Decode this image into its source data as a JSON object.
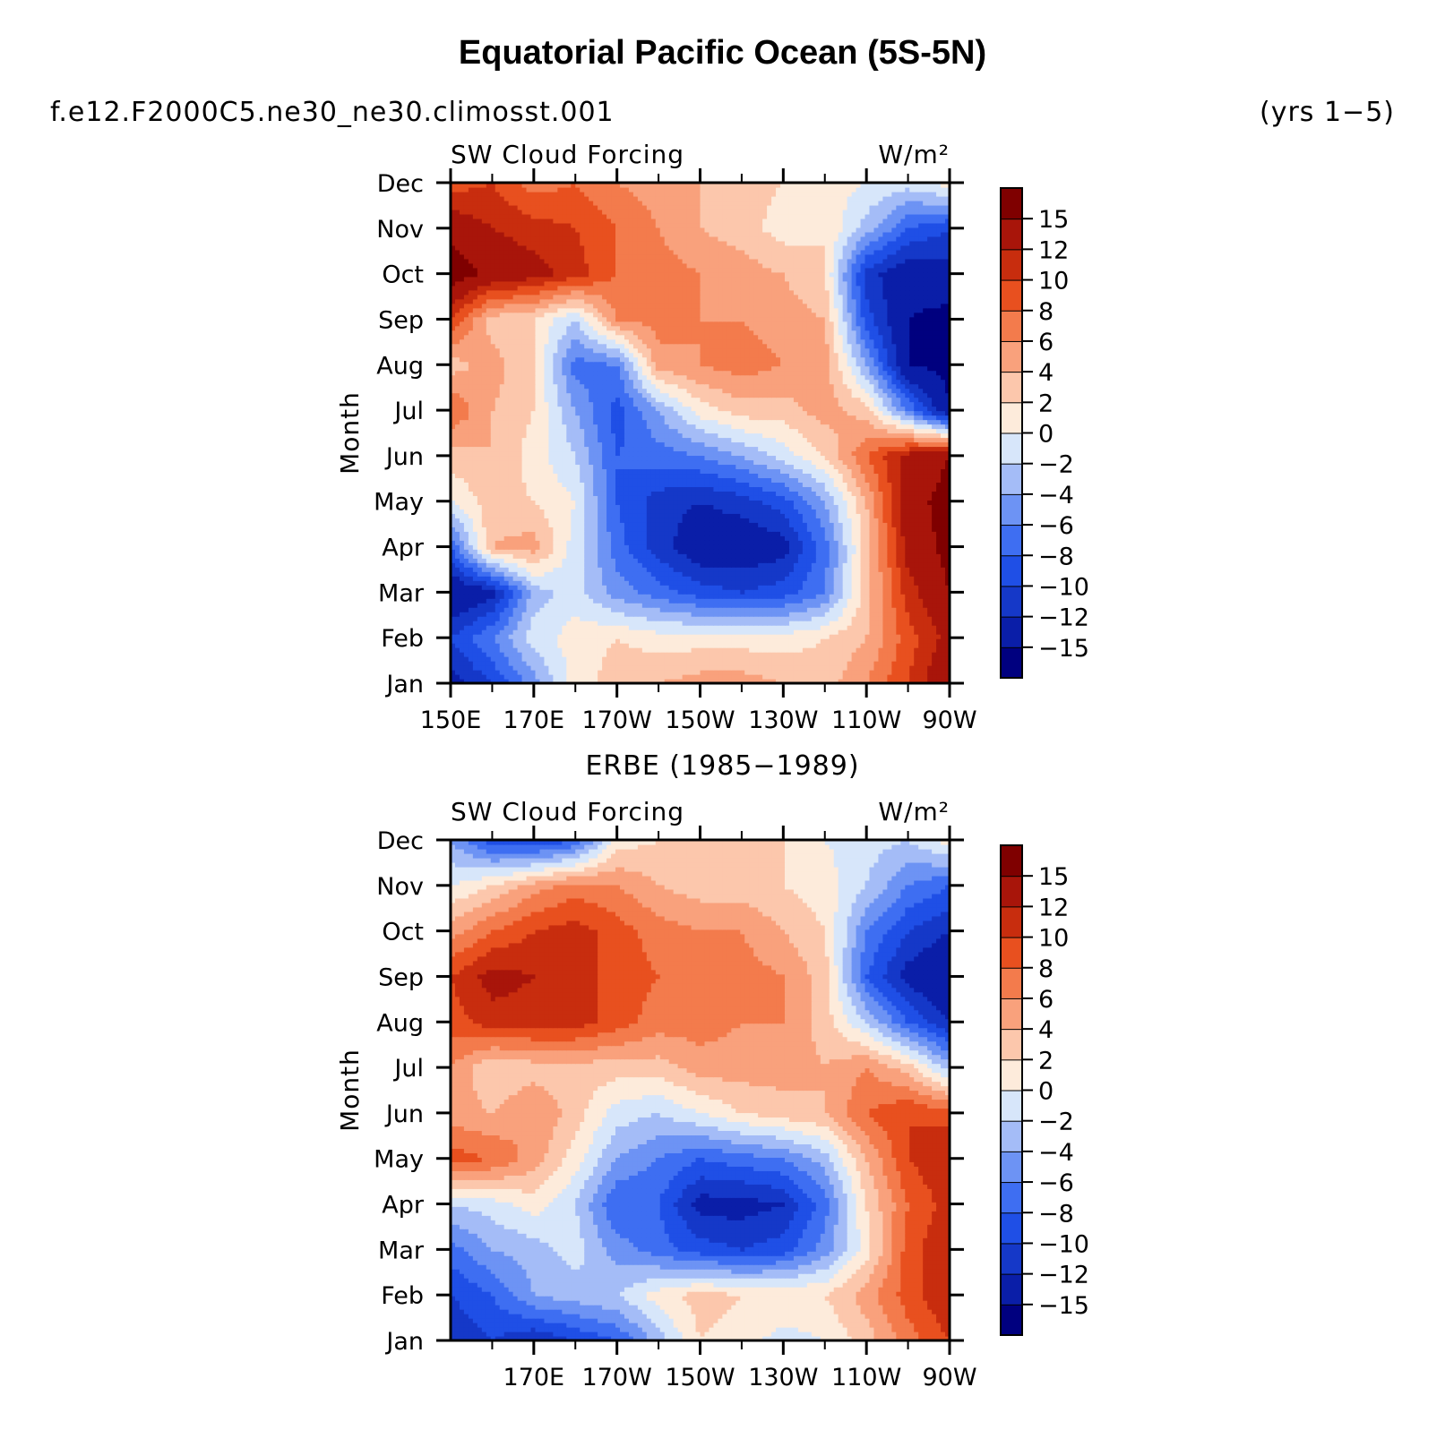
{
  "figure": {
    "title": "Equatorial Pacific Ocean (5S-5N)",
    "case_name": "f.e12.F2000C5.ne30_ne30.climosst.001",
    "years": "(yrs 1−5)"
  },
  "colorbar": {
    "labels": [
      "15",
      "12",
      "10",
      "8",
      "6",
      "4",
      "2",
      "0",
      "−2",
      "−4",
      "−6",
      "−8",
      "−10",
      "−12",
      "−15"
    ],
    "levels": [
      -15,
      -12,
      -10,
      -8,
      -6,
      -4,
      -2,
      0,
      2,
      4,
      6,
      8,
      10,
      12,
      15
    ],
    "colors": [
      "#00007f",
      "#0a1ea8",
      "#1538c8",
      "#1f4fe6",
      "#3e6ef2",
      "#6d93f4",
      "#a4bcf7",
      "#d7e6fa",
      "#fdebdb",
      "#fcc7ac",
      "#f9a17c",
      "#f37b4c",
      "#e8501f",
      "#c82d0e",
      "#a8150a",
      "#7f0000"
    ]
  },
  "chart_data": [
    {
      "type": "heatmap",
      "name": "model",
      "panel_title": "",
      "left_label": "SW Cloud Forcing",
      "right_label": "W/m²",
      "ylabel": "Month",
      "xlabel": "",
      "x_ticklabels": [
        "150E",
        "170E",
        "170W",
        "150W",
        "130W",
        "110W",
        "90W"
      ],
      "x_tickvalues": [
        150,
        170,
        190,
        210,
        230,
        250,
        270
      ],
      "xlim": [
        150,
        270
      ],
      "y_ticklabels": [
        "Jan",
        "Feb",
        "Mar",
        "Apr",
        "May",
        "Jun",
        "Jul",
        "Aug",
        "Sep",
        "Oct",
        "Nov",
        "Dec"
      ],
      "ylim": [
        1,
        12
      ],
      "x": [
        150,
        160,
        170,
        180,
        190,
        200,
        210,
        220,
        230,
        240,
        250,
        260,
        270
      ],
      "y": [
        1,
        2,
        3,
        4,
        5,
        6,
        7,
        8,
        9,
        10,
        11,
        12
      ],
      "z": [
        [
          -13,
          -10,
          -5,
          1,
          3,
          4,
          5,
          5,
          4,
          3,
          6,
          10,
          15
        ],
        [
          -10,
          -6,
          -1,
          1,
          2,
          1,
          1,
          1,
          1,
          2,
          4,
          9,
          13
        ],
        [
          -15,
          -13,
          -3,
          -1,
          -5,
          -7,
          -9,
          -10,
          -9,
          -6,
          3,
          11,
          15
        ],
        [
          -8,
          4,
          5,
          -1,
          -7,
          -11,
          -14,
          -14,
          -13,
          -7,
          3,
          13,
          16
        ],
        [
          0,
          3,
          2,
          0,
          -8,
          -11,
          -12,
          -11,
          -9,
          -4,
          4,
          14,
          16
        ],
        [
          3,
          4,
          1,
          -2,
          -8,
          -7,
          -6,
          -4,
          -1,
          2,
          8,
          13,
          15
        ],
        [
          8,
          4,
          2,
          -4,
          -9,
          -4,
          1,
          3,
          3,
          5,
          3,
          -6,
          -15
        ],
        [
          3,
          5,
          2,
          -7,
          -6,
          5,
          6,
          7,
          6,
          5,
          -4,
          -15,
          -16
        ],
        [
          10,
          3,
          2,
          -2,
          6,
          7,
          6,
          6,
          5,
          4,
          -9,
          -15,
          -16
        ],
        [
          17,
          14,
          13,
          11,
          8,
          7,
          6,
          5,
          4,
          2,
          -11,
          -14,
          -13
        ],
        [
          14,
          12,
          11,
          10,
          8,
          6,
          4,
          3,
          1,
          2,
          -3,
          -8,
          -10
        ],
        [
          9,
          10,
          7,
          8,
          6,
          5,
          4,
          3,
          2,
          1,
          0,
          -1,
          1
        ]
      ]
    },
    {
      "type": "heatmap",
      "name": "obs",
      "panel_title": "ERBE (1985−1989)",
      "left_label": "SW Cloud Forcing",
      "right_label": "W/m²",
      "ylabel": "Month",
      "xlabel": "",
      "x_ticklabels": [
        "170E",
        "170W",
        "150W",
        "130W",
        "110W",
        "90W"
      ],
      "x_tickvalues": [
        170,
        190,
        210,
        230,
        250,
        270
      ],
      "xlim": [
        150,
        270
      ],
      "y_ticklabels": [
        "Jan",
        "Feb",
        "Mar",
        "Apr",
        "May",
        "Jun",
        "Jul",
        "Aug",
        "Sep",
        "Oct",
        "Nov",
        "Dec"
      ],
      "ylim": [
        1,
        12
      ],
      "x": [
        150,
        160,
        170,
        180,
        190,
        200,
        210,
        220,
        230,
        240,
        250,
        260,
        270
      ],
      "y": [
        1,
        2,
        3,
        4,
        5,
        6,
        7,
        8,
        9,
        10,
        11,
        12
      ],
      "z": [
        [
          -12,
          -10,
          -12,
          -10,
          -8,
          -3,
          2,
          1,
          -1,
          0,
          3,
          7,
          10
        ],
        [
          -10,
          -8,
          -4,
          -3,
          -2,
          1,
          3,
          2,
          2,
          2,
          5,
          9,
          12
        ],
        [
          -7,
          -4,
          -3,
          -1,
          -5,
          -7,
          -9,
          -10,
          -9,
          -5,
          1,
          9,
          12
        ],
        [
          -2,
          -1,
          1,
          -2,
          -8,
          -8,
          -13,
          -13,
          -12,
          -7,
          2,
          8,
          11
        ],
        [
          9,
          8,
          5,
          1,
          -4,
          -6,
          -8,
          -7,
          -6,
          -3,
          4,
          10,
          12
        ],
        [
          5,
          4,
          6,
          3,
          -1,
          -2,
          0,
          2,
          3,
          4,
          8,
          10,
          9
        ],
        [
          6,
          2,
          3,
          3,
          3,
          3,
          5,
          5,
          5,
          4,
          6,
          3,
          -3
        ],
        [
          9,
          11,
          11,
          11,
          9,
          7,
          7,
          6,
          6,
          3,
          -2,
          -8,
          -12
        ],
        [
          10,
          13,
          12,
          11,
          9,
          8,
          7,
          7,
          6,
          3,
          -8,
          -13,
          -15
        ],
        [
          5,
          8,
          10,
          11,
          9,
          7,
          6,
          6,
          4,
          2,
          -6,
          -10,
          -12
        ],
        [
          0,
          2,
          5,
          7,
          6,
          4,
          3,
          3,
          2,
          1,
          -2,
          -6,
          -8
        ],
        [
          -4,
          -9,
          -10,
          -8,
          1,
          2,
          3,
          2,
          2,
          0,
          -1,
          -2,
          1
        ]
      ]
    }
  ]
}
